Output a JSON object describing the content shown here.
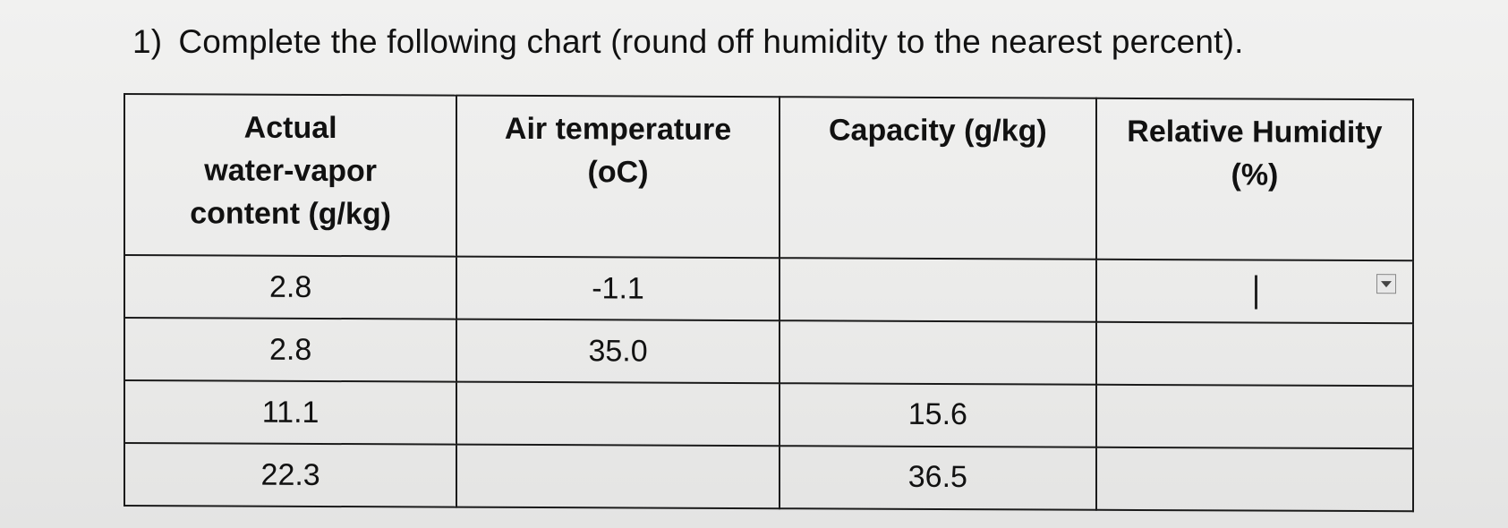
{
  "question": {
    "number": "1)",
    "text": "Complete the following chart (round off humidity to the nearest percent)."
  },
  "table": {
    "headers": [
      [
        "Actual",
        "water-vapor",
        "content (g/kg)"
      ],
      [
        "Air temperature",
        "(oC)"
      ],
      [
        "Capacity (g/kg)"
      ],
      [
        "Relative Humidity",
        "(%)"
      ]
    ],
    "rows": [
      {
        "content": "2.8",
        "temperature": "-1.1",
        "capacity": "",
        "humidity": ""
      },
      {
        "content": "2.8",
        "temperature": "35.0",
        "capacity": "",
        "humidity": ""
      },
      {
        "content": "11.1",
        "temperature": "",
        "capacity": "15.6",
        "humidity": ""
      },
      {
        "content": "22.3",
        "temperature": "",
        "capacity": "36.5",
        "humidity": ""
      }
    ]
  },
  "icons": {
    "dropdown": "chevron-down-icon",
    "cursor": "text-cursor-icon"
  }
}
